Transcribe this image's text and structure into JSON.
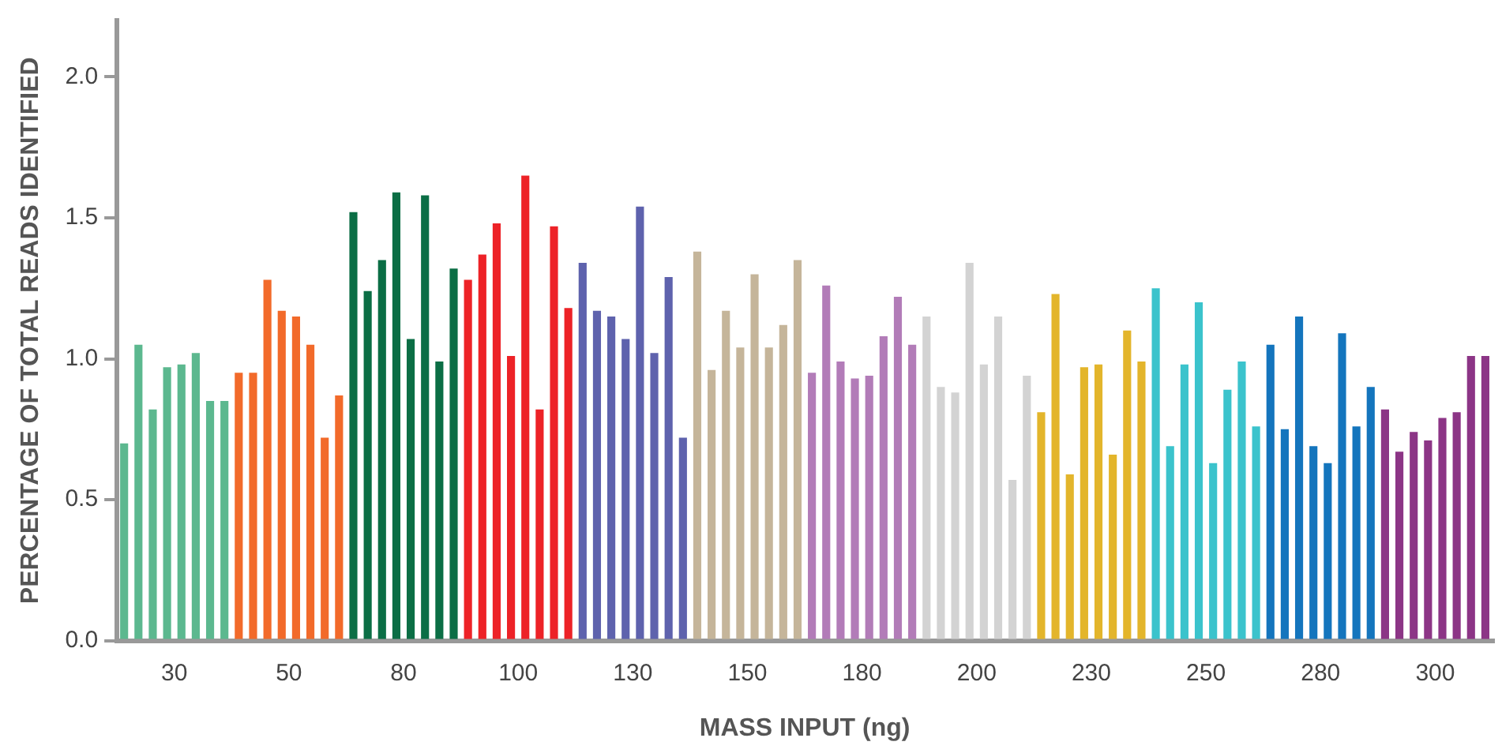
{
  "chart_data": {
    "type": "bar",
    "xlabel": "MASS INPUT (ng)",
    "ylabel": "PERCENTAGE OF TOTAL READS IDENTIFIED",
    "categories": [
      "30",
      "50",
      "80",
      "100",
      "130",
      "150",
      "180",
      "200",
      "230",
      "250",
      "280",
      "300"
    ],
    "series": [
      {
        "colors": [
          "#5cb88f",
          "#f26a2a",
          "#0b6e45",
          "#ed2227",
          "#5e62ad",
          "#c5b59a",
          "#b27cb8",
          "#d3d3d3",
          "#e3b52b",
          "#3bc3cc",
          "#1475bd",
          "#8c3586"
        ],
        "values": [
          0.7,
          0.95,
          1.52,
          1.28,
          1.34,
          1.38,
          0.95,
          1.15,
          0.81,
          1.25,
          1.05,
          0.82
        ]
      },
      {
        "colors": [
          "#5cb88f",
          "#f26a2a",
          "#0b6e45",
          "#ed2227",
          "#5e62ad",
          "#c5b59a",
          "#b27cb8",
          "#d3d3d3",
          "#e3b52b",
          "#3bc3cc",
          "#1475bd",
          "#8c3586"
        ],
        "values": [
          1.05,
          0.95,
          1.24,
          1.37,
          1.17,
          0.96,
          1.26,
          0.9,
          1.23,
          0.69,
          0.75,
          0.67
        ]
      },
      {
        "colors": [
          "#5cb88f",
          "#f26a2a",
          "#0b6e45",
          "#ed2227",
          "#5e62ad",
          "#c5b59a",
          "#b27cb8",
          "#d3d3d3",
          "#e3b52b",
          "#3bc3cc",
          "#1475bd",
          "#8c3586"
        ],
        "values": [
          0.82,
          1.28,
          1.35,
          1.48,
          1.15,
          1.17,
          0.99,
          0.88,
          0.59,
          0.98,
          1.15,
          0.74
        ]
      },
      {
        "colors": [
          "#5cb88f",
          "#f26a2a",
          "#0b6e45",
          "#ed2227",
          "#5e62ad",
          "#c5b59a",
          "#b27cb8",
          "#d3d3d3",
          "#e3b52b",
          "#3bc3cc",
          "#1475bd",
          "#8c3586"
        ],
        "values": [
          0.97,
          1.17,
          1.59,
          1.01,
          1.07,
          1.04,
          0.93,
          1.34,
          0.97,
          1.2,
          0.69,
          0.71
        ]
      },
      {
        "colors": [
          "#5cb88f",
          "#f26a2a",
          "#0b6e45",
          "#ed2227",
          "#5e62ad",
          "#c5b59a",
          "#b27cb8",
          "#d3d3d3",
          "#e3b52b",
          "#3bc3cc",
          "#1475bd",
          "#8c3586"
        ],
        "values": [
          0.98,
          1.15,
          1.07,
          1.65,
          1.54,
          1.3,
          0.94,
          0.98,
          0.98,
          0.63,
          0.63,
          0.79
        ]
      },
      {
        "colors": [
          "#5cb88f",
          "#f26a2a",
          "#0b6e45",
          "#ed2227",
          "#5e62ad",
          "#c5b59a",
          "#b27cb8",
          "#d3d3d3",
          "#e3b52b",
          "#3bc3cc",
          "#1475bd",
          "#8c3586"
        ],
        "values": [
          1.02,
          1.05,
          1.58,
          0.82,
          1.02,
          1.04,
          1.08,
          1.15,
          0.66,
          0.89,
          1.09,
          0.81
        ]
      },
      {
        "colors": [
          "#5cb88f",
          "#f26a2a",
          "#0b6e45",
          "#ed2227",
          "#5e62ad",
          "#c5b59a",
          "#b27cb8",
          "#d3d3d3",
          "#e3b52b",
          "#3bc3cc",
          "#1475bd",
          "#8c3586"
        ],
        "values": [
          0.85,
          0.72,
          0.99,
          1.47,
          1.29,
          1.12,
          1.22,
          0.57,
          1.1,
          0.99,
          0.76,
          1.01
        ]
      },
      {
        "colors": [
          "#5cb88f",
          "#f26a2a",
          "#0b6e45",
          "#ed2227",
          "#5e62ad",
          "#c5b59a",
          "#b27cb8",
          "#d3d3d3",
          "#e3b52b",
          "#3bc3cc",
          "#1475bd",
          "#8c3586"
        ],
        "values": [
          0.85,
          0.87,
          1.32,
          1.18,
          0.72,
          1.35,
          1.05,
          0.94,
          0.99,
          0.76,
          0.9,
          1.01
        ]
      }
    ],
    "ylim": [
      0,
      2.2
    ],
    "yticks": [
      {
        "value": 0,
        "label": "0.0"
      },
      {
        "value": 0.5,
        "label": "0.5"
      },
      {
        "value": 1,
        "label": "1.0"
      },
      {
        "value": 1.5,
        "label": "1.5"
      },
      {
        "value": 2,
        "label": "2.0"
      }
    ],
    "grid": false,
    "legend": false
  }
}
